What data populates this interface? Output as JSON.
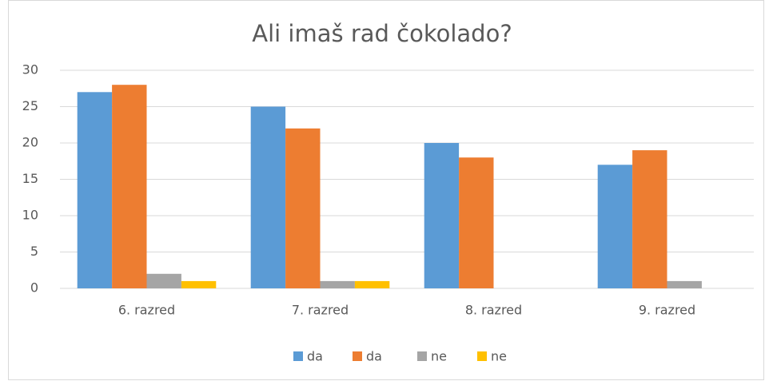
{
  "chart_data": {
    "type": "bar",
    "title": "Ali imaš rad čokolado?",
    "categories": [
      "6. razred",
      "7. razred",
      "8. razred",
      "9. razred"
    ],
    "series": [
      {
        "name": "da",
        "color": "#5b9bd5",
        "values": [
          27,
          25,
          20,
          17
        ]
      },
      {
        "name": "da",
        "color": "#ed7d31",
        "values": [
          28,
          22,
          18,
          19
        ]
      },
      {
        "name": "ne",
        "color": "#a5a5a5",
        "values": [
          2,
          1,
          0,
          1
        ]
      },
      {
        "name": "ne",
        "color": "#ffc000",
        "values": [
          1,
          1,
          0,
          0
        ]
      }
    ],
    "ylim": [
      0,
      30
    ],
    "yticks": [
      0,
      5,
      10,
      15,
      20,
      25,
      30
    ],
    "grid": true,
    "legend": "bottom"
  }
}
